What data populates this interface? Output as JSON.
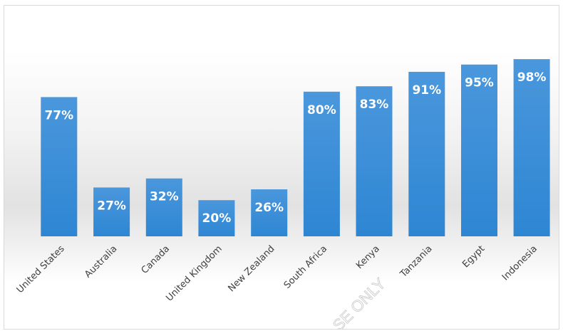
{
  "chart_data": {
    "type": "bar",
    "title": "",
    "xlabel": "",
    "ylabel": "",
    "ylim": [
      0,
      100
    ],
    "grid": false,
    "legend": "none",
    "categories": [
      "United States",
      "Australia",
      "Canada",
      "United Kingdom",
      "New Zealand",
      "South Africa",
      "Kenya",
      "Tanzania",
      "Egypt",
      "Indonesia"
    ],
    "values": [
      77,
      27,
      32,
      20,
      26,
      80,
      83,
      91,
      95,
      98
    ],
    "data_labels": [
      "77%",
      "27%",
      "32%",
      "20%",
      "26%",
      "80%",
      "83%",
      "91%",
      "95%",
      "98%"
    ],
    "bar_color": "#2e86d3",
    "bar_color_top": "#4a97dc"
  },
  "watermark": "SE ONLY"
}
